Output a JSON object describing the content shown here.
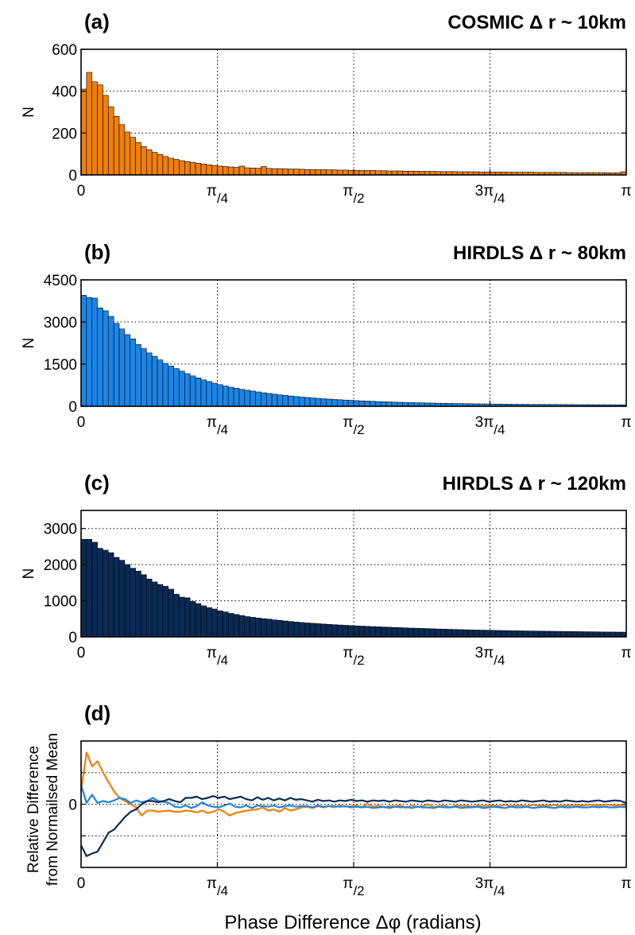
{
  "figure": {
    "xlabel": "Phase Difference Δφ  (radians)",
    "x_tick_labels": [
      {
        "main": "0",
        "sub": ""
      },
      {
        "main": "π",
        "sub": "/4"
      },
      {
        "main": "π",
        "sub": "/2"
      },
      {
        "main": "3π",
        "sub": "/4"
      },
      {
        "main": "π",
        "sub": ""
      }
    ]
  },
  "chart_data": [
    {
      "type": "bar",
      "panel": "(a)",
      "title": "COSMIC Δ r ~ 10km",
      "ylabel": "N",
      "color": "#f07f0a",
      "xlim": [
        0,
        3.14159
      ],
      "ylim": [
        0,
        600
      ],
      "yticks": [
        0,
        200,
        400,
        600
      ],
      "bin_count": 100,
      "values": [
        410,
        490,
        445,
        430,
        380,
        325,
        280,
        240,
        205,
        180,
        155,
        135,
        120,
        108,
        98,
        88,
        80,
        74,
        68,
        64,
        60,
        56,
        52,
        48,
        45,
        42,
        40,
        38,
        36,
        42,
        34,
        33,
        32,
        40,
        31,
        30,
        30,
        29,
        28,
        28,
        27,
        26,
        26,
        25,
        25,
        24,
        24,
        23,
        23,
        22,
        22,
        21,
        21,
        21,
        20,
        20,
        19,
        19,
        19,
        18,
        18,
        18,
        17,
        17,
        17,
        16,
        16,
        16,
        16,
        15,
        15,
        15,
        15,
        14,
        14,
        14,
        14,
        14,
        13,
        13,
        13,
        13,
        13,
        12,
        12,
        12,
        12,
        12,
        12,
        11,
        11,
        11,
        11,
        11,
        11,
        11,
        10,
        10,
        10,
        15
      ]
    },
    {
      "type": "bar",
      "panel": "(b)",
      "title": "HIRDLS Δ r ~ 80km",
      "ylabel": "N",
      "color": "#1a85e6",
      "xlim": [
        0,
        3.14159
      ],
      "ylim": [
        0,
        4500
      ],
      "yticks": [
        0,
        1500,
        3000,
        4500
      ],
      "bin_count": 100,
      "values": [
        3950,
        3870,
        3850,
        3500,
        3400,
        3200,
        2950,
        2750,
        2550,
        2400,
        2200,
        2050,
        1900,
        1780,
        1650,
        1530,
        1430,
        1340,
        1250,
        1160,
        1080,
        1010,
        940,
        880,
        820,
        770,
        720,
        680,
        640,
        600,
        570,
        540,
        510,
        480,
        455,
        430,
        405,
        385,
        365,
        345,
        328,
        312,
        296,
        282,
        268,
        255,
        243,
        232,
        221,
        211,
        201,
        192,
        184,
        176,
        168,
        161,
        154,
        148,
        142,
        136,
        131,
        126,
        121,
        117,
        113,
        109,
        105,
        101,
        98,
        95,
        92,
        89,
        86,
        84,
        82,
        80,
        78,
        76,
        74,
        72,
        70,
        69,
        67,
        66,
        65,
        64,
        63,
        62,
        61,
        60,
        59,
        58,
        57,
        56,
        56,
        55,
        55,
        54,
        54,
        53
      ]
    },
    {
      "type": "bar",
      "panel": "(c)",
      "title": "HIRDLS Δ r ~ 120km",
      "ylabel": "N",
      "color": "#0a2b55",
      "xlim": [
        0,
        3.14159
      ],
      "ylim": [
        0,
        3500
      ],
      "yticks": [
        0,
        1000,
        2000,
        3000
      ],
      "bin_count": 100,
      "values": [
        2700,
        2700,
        2620,
        2450,
        2400,
        2330,
        2200,
        2120,
        2000,
        1900,
        1820,
        1720,
        1600,
        1520,
        1450,
        1400,
        1320,
        1180,
        1100,
        1080,
        980,
        920,
        860,
        810,
        770,
        720,
        690,
        650,
        620,
        590,
        560,
        540,
        520,
        505,
        490,
        470,
        455,
        440,
        425,
        410,
        397,
        385,
        375,
        365,
        355,
        345,
        336,
        328,
        320,
        312,
        305,
        298,
        291,
        284,
        278,
        272,
        266,
        260,
        254,
        248,
        243,
        238,
        233,
        228,
        223,
        218,
        213,
        209,
        205,
        201,
        197,
        193,
        189,
        186,
        183,
        180,
        177,
        174,
        171,
        168,
        166,
        164,
        162,
        160,
        158,
        156,
        154,
        152,
        150,
        148,
        146,
        144,
        142,
        140,
        138,
        136,
        134,
        133,
        132,
        131
      ]
    },
    {
      "type": "line",
      "panel": "(d)",
      "title": "",
      "ylabel_lines": [
        "Relative Difference",
        "from Normailsed Mean"
      ],
      "xlim": [
        0,
        3.14159
      ],
      "ylim": [
        -1,
        1
      ],
      "yticks_labeled": [
        {
          "value": 0,
          "label": "0"
        }
      ],
      "ygrid": [
        -0.5,
        0,
        0.5
      ],
      "series": [
        {
          "color": "#f07f0a",
          "values": [
            0.2,
            0.82,
            0.6,
            0.68,
            0.5,
            0.35,
            0.2,
            0.1,
            0.05,
            0,
            -0.05,
            -0.18,
            -0.1,
            -0.1,
            -0.12,
            -0.11,
            -0.1,
            -0.12,
            -0.12,
            -0.1,
            -0.11,
            -0.13,
            -0.1,
            -0.14,
            -0.12,
            -0.08,
            -0.12,
            -0.18,
            -0.14,
            -0.12,
            -0.1,
            -0.09,
            -0.08,
            -0.05,
            -0.1,
            -0.08,
            -0.12,
            -0.06,
            -0.1,
            -0.08,
            -0.05,
            -0.04,
            -0.06,
            -0.03,
            -0.05,
            -0.03,
            -0.05,
            -0.02,
            -0.04,
            -0.03,
            -0.02,
            -0.05,
            0.01,
            -0.04,
            -0.02,
            -0.05,
            -0.03,
            -0.03,
            -0.02,
            -0.06,
            -0.02,
            -0.04,
            -0.03,
            0,
            -0.04,
            -0.03,
            -0.02,
            -0.05,
            -0.02,
            -0.03,
            -0.02,
            -0.04,
            -0.02,
            -0.03,
            -0.02,
            -0.02,
            -0.03,
            -0.01,
            -0.03,
            -0.02,
            -0.02,
            -0.03,
            -0.01,
            -0.02,
            -0.02,
            -0.02,
            -0.01,
            -0.03,
            -0.02,
            -0.02,
            -0.01,
            -0.02,
            -0.01,
            -0.01,
            -0.02,
            -0.01,
            -0.01,
            -0.02,
            -0.01,
            -0.02
          ]
        },
        {
          "color": "#1a85e6",
          "values": [
            0.3,
            0.02,
            0.15,
            0.02,
            0.05,
            0.03,
            0.06,
            0.1,
            0.08,
            0.02,
            0.06,
            0.03,
            0.05,
            0.1,
            0.05,
            0.04,
            0.02,
            -0.04,
            -0.05,
            -0.02,
            -0.06,
            -0.03,
            0.03,
            -0.02,
            -0.04,
            -0.05,
            -0.02,
            0.01,
            -0.04,
            -0.05,
            -0.02,
            -0.06,
            -0.02,
            -0.03,
            -0.04,
            -0.02,
            -0.05,
            -0.03,
            -0.02,
            -0.04,
            -0.03,
            -0.03,
            -0.05,
            -0.02,
            -0.04,
            -0.03,
            -0.03,
            -0.04,
            -0.03,
            -0.05,
            -0.04,
            -0.05,
            -0.04,
            -0.06,
            -0.05,
            -0.04,
            -0.06,
            -0.04,
            -0.05,
            -0.04,
            -0.06,
            -0.04,
            -0.05,
            -0.05,
            -0.06,
            -0.04,
            -0.05,
            -0.05,
            -0.04,
            -0.06,
            -0.05,
            -0.05,
            -0.04,
            -0.06,
            -0.05,
            -0.04,
            -0.05,
            -0.06,
            -0.04,
            -0.05,
            -0.05,
            -0.04,
            -0.06,
            -0.05,
            -0.04,
            -0.05,
            -0.06,
            -0.04,
            -0.05,
            -0.05,
            -0.04,
            -0.05,
            -0.05,
            -0.04,
            -0.05,
            -0.04,
            -0.05,
            -0.05,
            -0.04,
            -0.05
          ]
        },
        {
          "color": "#0a2b55",
          "values": [
            -0.65,
            -0.82,
            -0.78,
            -0.75,
            -0.6,
            -0.45,
            -0.4,
            -0.3,
            -0.2,
            -0.12,
            -0.08,
            0,
            0.05,
            0.05,
            0.03,
            0.05,
            0.08,
            0.05,
            0.03,
            0.1,
            0.1,
            0.12,
            0.08,
            0.1,
            0.13,
            0.1,
            0.12,
            0.08,
            0.1,
            0.12,
            0.08,
            0.06,
            0.11,
            0.07,
            0.1,
            0.06,
            0.09,
            0.06,
            0.1,
            0.07,
            0.08,
            0.06,
            0.04,
            0.07,
            0.05,
            0.06,
            0.04,
            0.06,
            0.05,
            0.07,
            0.05,
            0.06,
            0.04,
            0.06,
            0.05,
            0.06,
            0.04,
            0.06,
            0.05,
            0.04,
            0.06,
            0.05,
            0.04,
            0.06,
            0.05,
            0.04,
            0.06,
            0.05,
            0.04,
            0.06,
            0.05,
            0.04,
            0.05,
            0.06,
            0.04,
            0.05,
            0.06,
            0.04,
            0.05,
            0.04,
            0.06,
            0.05,
            0.04,
            0.05,
            0.06,
            0.04,
            0.05,
            0.04,
            0.06,
            0.05,
            0.04,
            0.05,
            0.04,
            0.05,
            0.06,
            0.04,
            0.05,
            0.06,
            0.05,
            0.02
          ]
        }
      ]
    }
  ]
}
